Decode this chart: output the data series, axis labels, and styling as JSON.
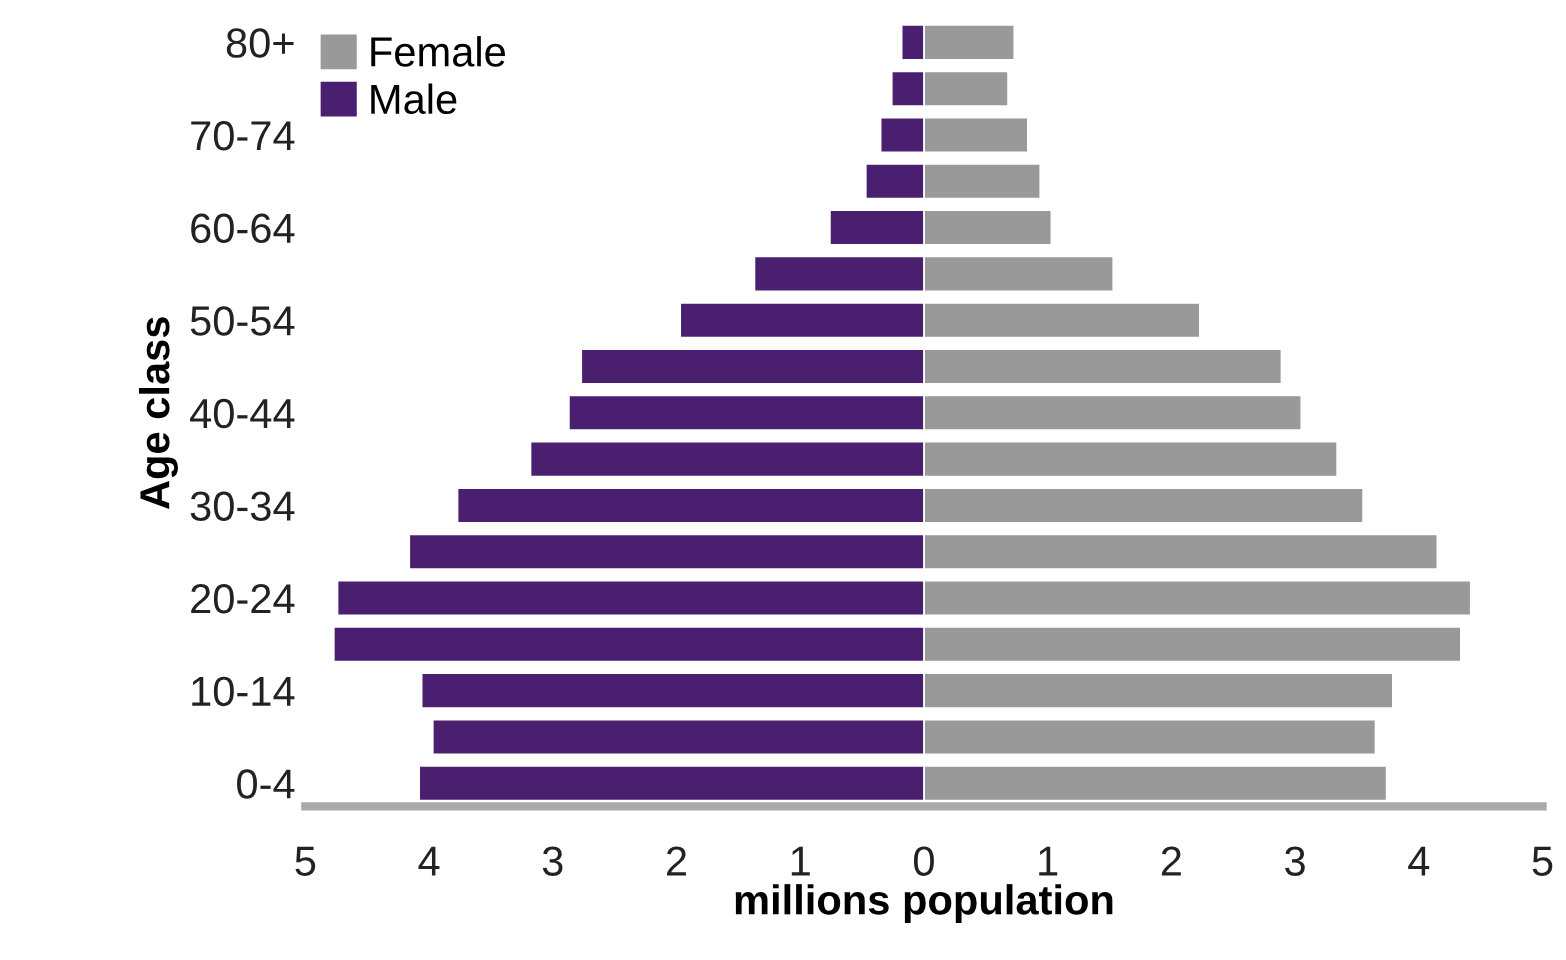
{
  "chart_data": {
    "type": "bar",
    "orientation": "horizontal",
    "stacked": true,
    "xlabel": "millions population",
    "ylabel": "Age class",
    "categories": [
      "80+",
      null,
      "70-74",
      null,
      "60-64",
      null,
      "50-54",
      null,
      "40-44",
      null,
      "30-34",
      null,
      "20-24",
      null,
      "10-14",
      null,
      "0-4"
    ],
    "series": [
      {
        "name": "Female",
        "color": "#999999",
        "values": [
          0.73,
          0.68,
          0.84,
          0.94,
          1.03,
          1.53,
          2.23,
          2.89,
          3.05,
          3.34,
          3.55,
          4.15,
          4.42,
          4.34,
          3.79,
          3.65,
          3.74
        ]
      },
      {
        "name": "Male",
        "color": "#4b1f6f",
        "values": [
          -0.18,
          -0.26,
          -0.35,
          -0.47,
          -0.76,
          -1.37,
          -1.97,
          -2.77,
          -2.87,
          -3.18,
          -3.77,
          -4.16,
          -4.74,
          -4.77,
          -4.06,
          -3.97,
          -4.08
        ]
      }
    ],
    "xlim": [
      -5,
      5
    ],
    "xticks": [
      {
        "value": -5,
        "label": "5"
      },
      {
        "value": -4,
        "label": "4"
      },
      {
        "value": -3,
        "label": "3"
      },
      {
        "value": -2,
        "label": "2"
      },
      {
        "value": -1,
        "label": "1"
      },
      0,
      1,
      2,
      3,
      4,
      5
    ],
    "legend": "top left",
    "grid": false
  }
}
